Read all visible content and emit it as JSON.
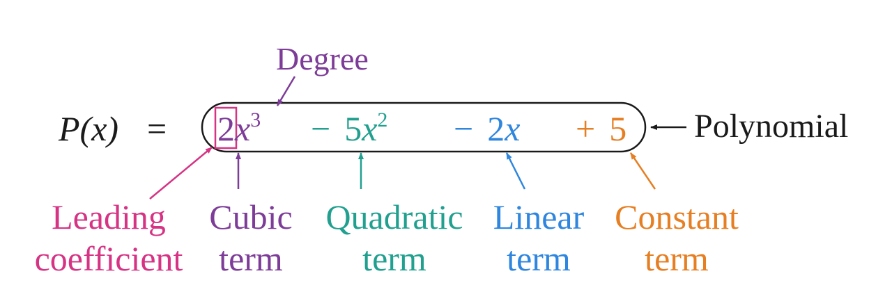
{
  "colors": {
    "black": "#1a1a1a",
    "degree": "#7d3c98",
    "leading": "#d63384",
    "cubic": "#7d3c98",
    "quadratic": "#21a08f",
    "linear": "#2e86de",
    "constant": "#e67e22"
  },
  "equation": {
    "lhs": "P(x)",
    "equals": "=",
    "leading_coefficient": "2",
    "cubic_var": "x",
    "cubic_exp": "3",
    "quadratic_op": "−",
    "quadratic_coef": "5",
    "quadratic_var": "x",
    "quadratic_exp": "2",
    "linear_op": "−",
    "linear_coef": "2",
    "linear_var": "x",
    "constant_op": "+",
    "constant_value": "5"
  },
  "labels": {
    "degree": "Degree",
    "polynomial": "Polynomial",
    "leading_line1": "Leading",
    "leading_line2": "coefficient",
    "cubic_line1": "Cubic",
    "cubic_line2": "term",
    "quadratic_line1": "Quadratic",
    "quadratic_line2": "term",
    "linear_line1": "Linear",
    "linear_line2": "term",
    "constant_line1": "Constant",
    "constant_line2": "term"
  }
}
